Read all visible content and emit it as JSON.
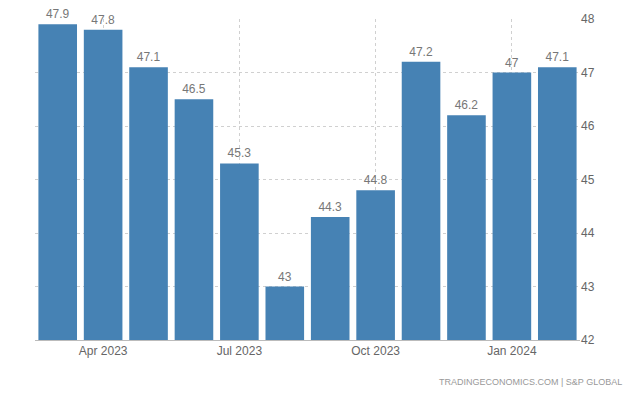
{
  "chart_data": {
    "type": "bar",
    "categories": [
      null,
      "Apr 2023",
      null,
      null,
      "Jul 2023",
      null,
      null,
      "Oct 2023",
      null,
      null,
      "Jan 2024",
      null
    ],
    "values": [
      47.9,
      47.8,
      47.1,
      46.5,
      45.3,
      43,
      44.3,
      44.8,
      47.2,
      46.2,
      47,
      47.1
    ],
    "color": "#4682b4",
    "ylim": [
      42,
      48
    ],
    "yticks": [
      42,
      43,
      44,
      45,
      46,
      47,
      48
    ],
    "grid": true,
    "data_labels": true,
    "source": "TRADINGECONOMICS.COM | S&P GLOBAL"
  }
}
